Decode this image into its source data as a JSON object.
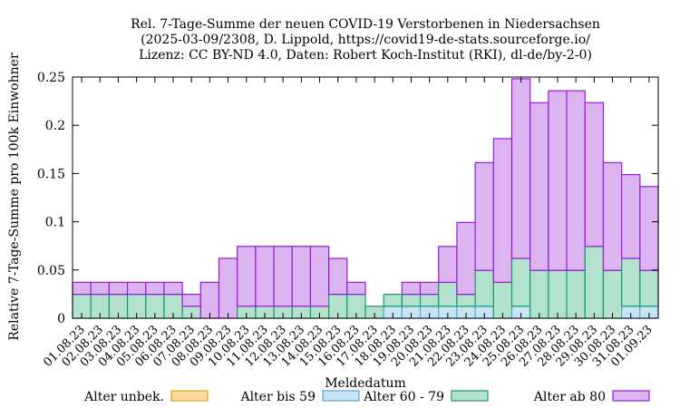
{
  "chart_data": {
    "type": "bar",
    "stacked": true,
    "title_lines": [
      "Rel. 7-Tage-Summe der neuen COVID-19 Verstorbenen in Niedersachsen",
      "(2025-03-09/2308, D. Lippold, https://covid19-de-stats.sourceforge.io/",
      "Lizenz: CC BY-ND 4.0, Daten: Robert Koch-Institut (RKI), dl-de/by-2-0)"
    ],
    "xlabel": "Meldedatum",
    "ylabel": "Relative 7-Tage-Summe pro 100k Einwohner",
    "ylim": [
      0,
      0.25
    ],
    "yticks": [
      "0",
      "0.05",
      "0.1",
      "0.15",
      "0.2",
      "0.25"
    ],
    "ytick_values": [
      0,
      0.05,
      0.1,
      0.15,
      0.2,
      0.25
    ],
    "grid": false,
    "legend_position": "bottom",
    "categories": [
      "01.08.23",
      "02.08.23",
      "03.08.23",
      "04.08.23",
      "05.08.23",
      "06.08.23",
      "07.08.23",
      "08.08.23",
      "09.08.23",
      "10.08.23",
      "11.08.23",
      "12.08.23",
      "13.08.23",
      "14.08.23",
      "15.08.23",
      "16.08.23",
      "17.08.23",
      "18.08.23",
      "19.08.23",
      "20.08.23",
      "21.08.23",
      "22.08.23",
      "23.08.23",
      "24.08.23",
      "25.08.23",
      "26.08.23",
      "27.08.23",
      "28.08.23",
      "29.08.23",
      "30.08.23",
      "31.08.23",
      "01.09.23"
    ],
    "series": [
      {
        "name": "Alter unbek.",
        "color": "#f8dc9c",
        "stroke": "#e6a21c",
        "values": [
          0,
          0,
          0,
          0,
          0,
          0,
          0,
          0,
          0,
          0,
          0,
          0,
          0,
          0,
          0,
          0,
          0,
          0,
          0,
          0,
          0,
          0,
          0,
          0,
          0,
          0,
          0,
          0,
          0,
          0,
          0,
          0
        ]
      },
      {
        "name": "Alter bis 59",
        "color": "#c6e4f4",
        "stroke": "#5aa8d6",
        "values": [
          0,
          0,
          0,
          0,
          0,
          0,
          0,
          0,
          0,
          0,
          0,
          0,
          0,
          0,
          0,
          0,
          0,
          0.0124,
          0.0124,
          0.0124,
          0.0124,
          0.0124,
          0.0124,
          0,
          0.0124,
          0,
          0,
          0,
          0,
          0,
          0.0124,
          0.0124
        ]
      },
      {
        "name": "Alter 60 - 79",
        "color": "#b2e2ce",
        "stroke": "#1a9a6a",
        "values": [
          0.0248,
          0.0248,
          0.0248,
          0.0248,
          0.0248,
          0.0248,
          0.0124,
          0,
          0,
          0.0124,
          0.0124,
          0.0124,
          0.0124,
          0.0124,
          0.0248,
          0.0248,
          0.0124,
          0.0124,
          0.0124,
          0.0124,
          0.0248,
          0.0124,
          0.0372,
          0.0372,
          0.0496,
          0.0496,
          0.0496,
          0.0496,
          0.0745,
          0.0496,
          0.0496,
          0.0372
        ]
      },
      {
        "name": "Alter ab 80",
        "color": "#dcb4f0",
        "stroke": "#9a1ad6",
        "values": [
          0.0124,
          0.0124,
          0.0124,
          0.0124,
          0.0124,
          0.0124,
          0.0124,
          0.0372,
          0.0621,
          0.0621,
          0.0621,
          0.0621,
          0.0621,
          0.0621,
          0.0372,
          0.0124,
          0,
          0,
          0.0124,
          0.0124,
          0.0372,
          0.0745,
          0.1117,
          0.149,
          0.1862,
          0.1738,
          0.1862,
          0.1862,
          0.149,
          0.1117,
          0.0869,
          0.0869
        ]
      }
    ]
  }
}
